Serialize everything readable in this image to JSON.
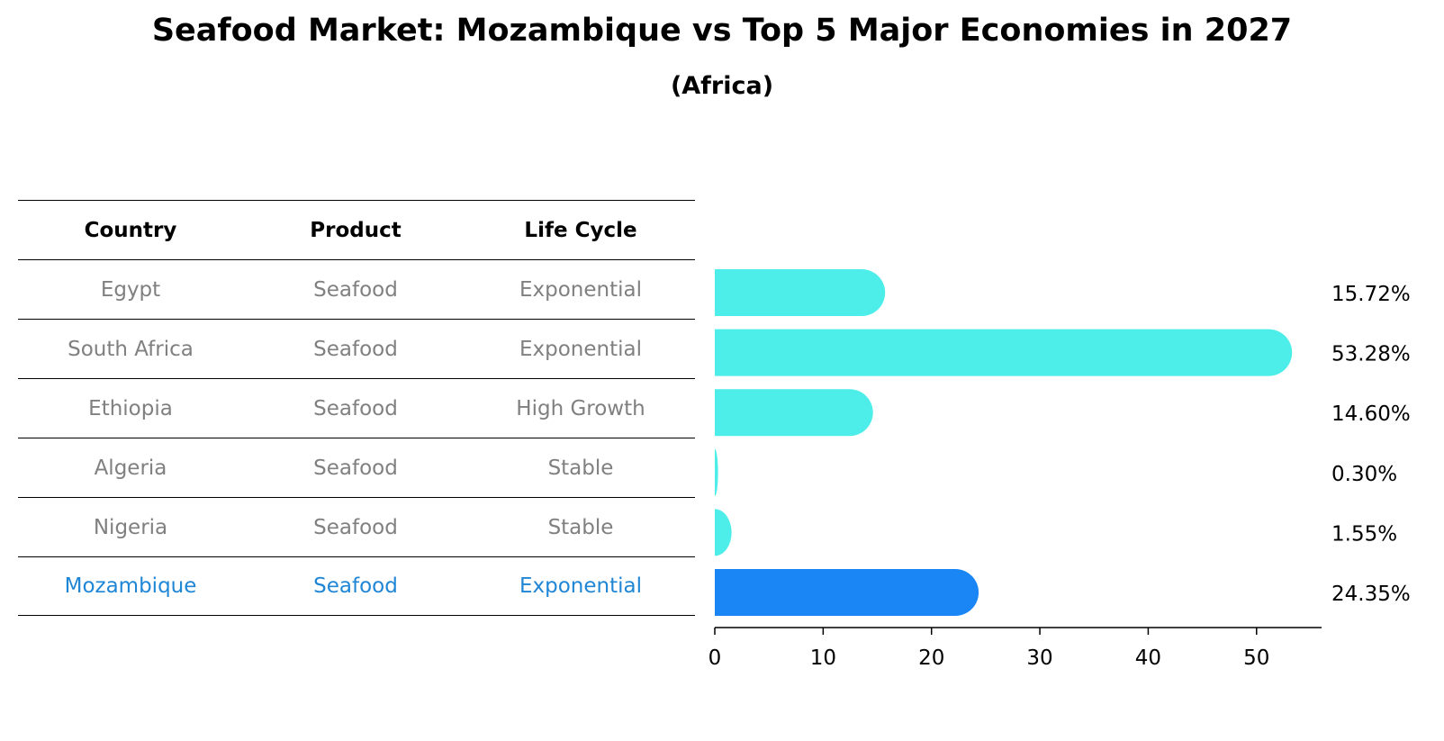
{
  "title": "Seafood Market: Mozambique vs Top 5 Major Economies in 2027",
  "subtitle": "(Africa)",
  "table": {
    "headers": [
      "Country",
      "Product",
      "Life Cycle"
    ],
    "rows": [
      [
        "Egypt",
        "Seafood",
        "Exponential"
      ],
      [
        "South Africa",
        "Seafood",
        "Exponential"
      ],
      [
        "Ethiopia",
        "Seafood",
        "High Growth"
      ],
      [
        "Algeria",
        "Seafood",
        "Stable"
      ],
      [
        "Nigeria",
        "Seafood",
        "Stable"
      ],
      [
        "Mozambique",
        "Seafood",
        "Exponential"
      ]
    ],
    "highlight_row": 5,
    "highlight_color": "#1f86d6"
  },
  "chart_data": {
    "type": "bar",
    "orientation": "horizontal",
    "categories": [
      "Egypt",
      "South Africa",
      "Ethiopia",
      "Algeria",
      "Nigeria",
      "Mozambique"
    ],
    "values": [
      15.72,
      53.28,
      14.6,
      0.3,
      1.55,
      24.35
    ],
    "value_labels": [
      "15.72%",
      "53.28%",
      "14.60%",
      "0.30%",
      "1.55%",
      "24.35%"
    ],
    "xlim": [
      0,
      56
    ],
    "xticks": [
      0,
      10,
      20,
      30,
      40,
      50
    ],
    "bar_color": "#4deeea",
    "highlight_color": "#1a85f5",
    "highlight_index": 5,
    "grid": false
  }
}
